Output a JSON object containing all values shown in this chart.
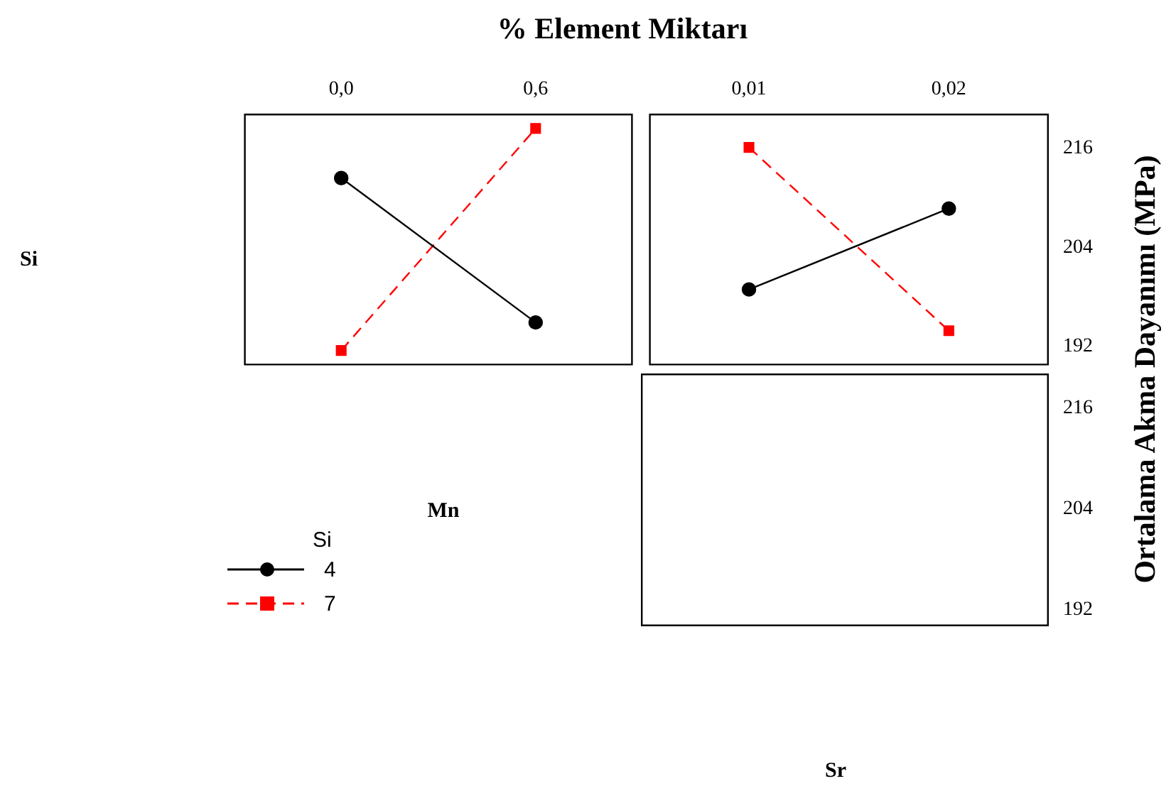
{
  "chart_data": [
    {
      "type": "line",
      "title": "% Element Miktarı",
      "xlabel": "Mn",
      "ylabel": "Si",
      "legend_title": "Si",
      "legend": "bottom left",
      "tick_labels": "x",
      "xlim": [
        -0.3,
        0.9
      ],
      "xticks": [
        {
          "value": 0,
          "label": "0,0"
        },
        {
          "value": 0.6,
          "label": "0,6"
        }
      ],
      "ylim": [
        189.7,
        220.2
      ],
      "x": [
        0,
        0.6
      ],
      "series": [
        {
          "name": "4",
          "color": "#000000",
          "marker": "circle",
          "line_style": "solid",
          "values": [
            212.4,
            194.9
          ]
        },
        {
          "name": "7",
          "color": "#ff0000",
          "marker": "square",
          "line_style": "dashed",
          "values": [
            191.5,
            218.4
          ]
        }
      ]
    },
    {
      "type": "line",
      "xlabel": "Sr",
      "ylabel": "Ortalama Akma Dayanımı (MPa)",
      "xlim": [
        0.005,
        0.025
      ],
      "xticks": [
        {
          "value": 0.01,
          "label": "0,01"
        },
        {
          "value": 0.02,
          "label": "0,02"
        }
      ],
      "ylim": [
        189.7,
        220.2
      ],
      "yticks": [
        192,
        204,
        216
      ],
      "x": [
        0.01,
        0.02
      ],
      "series": [
        {
          "color": "#000000",
          "marker": "circle",
          "line_style": "solid",
          "values": [
            198.9,
            208.7
          ]
        },
        {
          "color": "#ff0000",
          "marker": "square",
          "line_style": "dashed",
          "values": [
            216.1,
            193.9
          ]
        }
      ]
    },
    {
      "type": "line",
      "tick_labels": "y",
      "xlim": [
        0.005,
        0.025
      ],
      "ylim": [
        190,
        220.1
      ],
      "yticks": [
        192,
        204,
        216
      ]
    }
  ]
}
